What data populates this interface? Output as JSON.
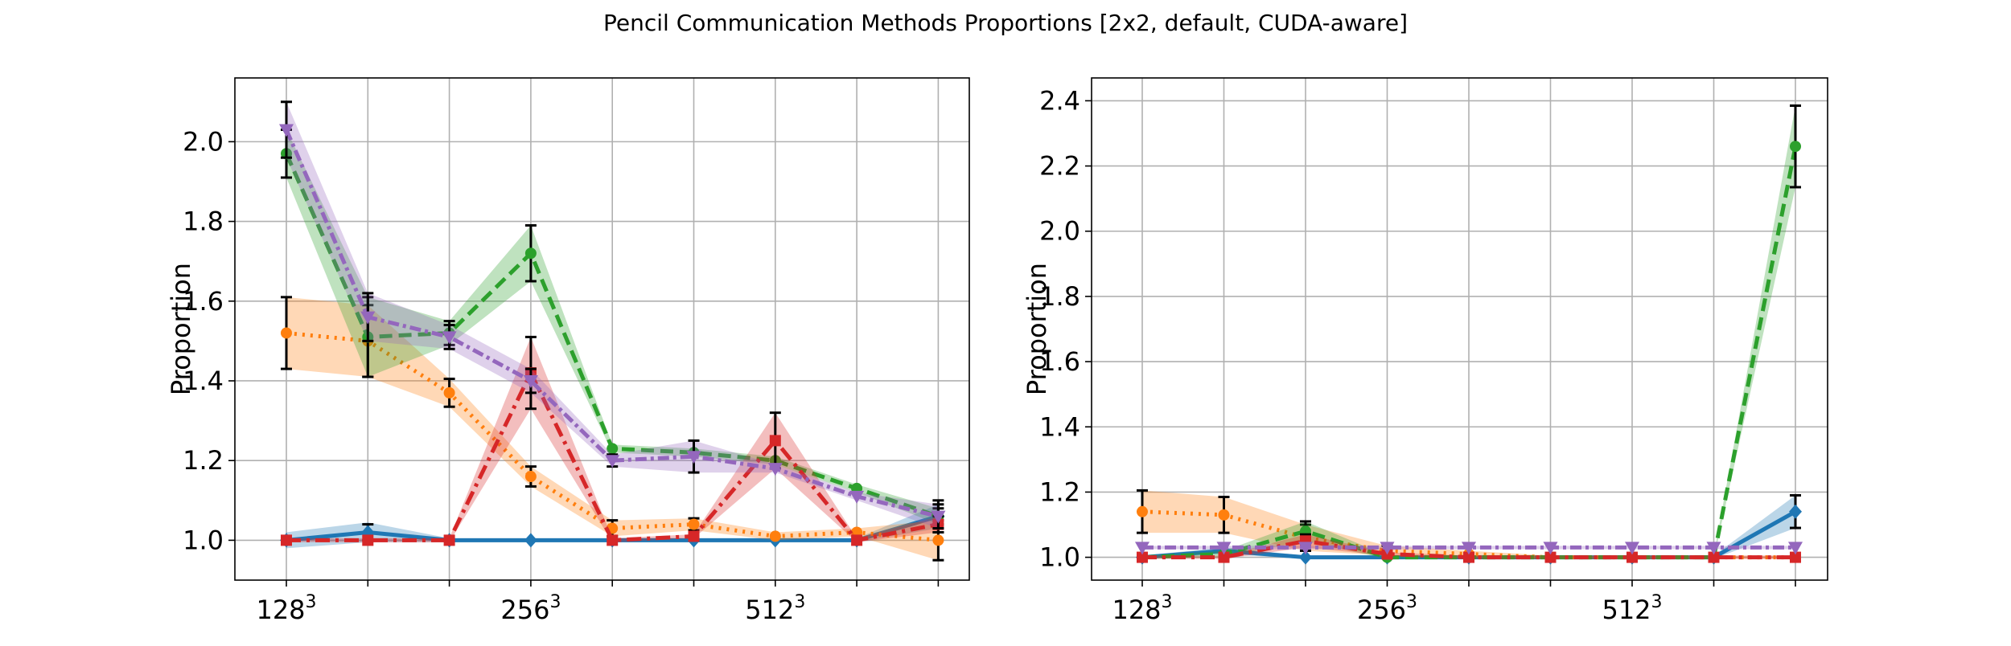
{
  "chart_data": [
    {
      "type": "line",
      "suptitle": "Pencil Communication Methods Proportions [2x2, default, CUDA-aware]",
      "title": "",
      "xlabel": "",
      "ylabel": "Proportion",
      "ylim": [
        0.9,
        2.16
      ],
      "yticks": [
        1.0,
        1.2,
        1.4,
        1.6,
        1.8,
        2.0
      ],
      "ytick_labels": [
        "1.0",
        "1.2",
        "1.4",
        "1.6",
        "1.8",
        "2.0"
      ],
      "x_labels": [
        "128",
        "",
        "",
        "256",
        "",
        "",
        "512",
        "",
        ""
      ],
      "tick_exponent": "3",
      "grid": true,
      "series": [
        {
          "color": "#1f77b4",
          "dash": "",
          "marker": "diamond",
          "values": [
            1.0,
            1.02,
            1.0,
            1.0,
            1.0,
            1.0,
            1.0,
            1.0,
            1.06
          ],
          "band": [
            0.02,
            0.025,
            0.005,
            0.005,
            0.005,
            0.005,
            0.005,
            0.005,
            0.03
          ],
          "err": [
            0.005,
            0.02,
            0.005,
            0.005,
            0.005,
            0.005,
            0.005,
            0.005,
            0.04
          ]
        },
        {
          "color": "#ff7f0e",
          "dash": "3,7",
          "marker": "circle",
          "values": [
            1.52,
            1.5,
            1.37,
            1.16,
            1.03,
            1.04,
            1.01,
            1.02,
            1.0
          ],
          "band": [
            0.09,
            0.09,
            0.035,
            0.025,
            0.02,
            0.015,
            0.01,
            0.01,
            0.05
          ],
          "err": [
            0.09,
            0.09,
            0.035,
            0.025,
            0.02,
            0.015,
            0.01,
            0.01,
            0.05
          ]
        },
        {
          "color": "#2ca02c",
          "dash": "16,8",
          "marker": "circle",
          "values": [
            1.97,
            1.51,
            1.52,
            1.72,
            1.23,
            1.22,
            1.2,
            1.13,
            1.06
          ],
          "band": [
            0.06,
            0.1,
            0.03,
            0.07,
            0.01,
            0.01,
            0.01,
            0.01,
            0.02
          ],
          "err": [
            0.06,
            0.1,
            0.03,
            0.07,
            0.01,
            0.01,
            0.01,
            0.01,
            0.02
          ]
        },
        {
          "color": "#d62728",
          "dash": "18,7,4,7",
          "marker": "square",
          "values": [
            1.0,
            1.0,
            1.0,
            1.42,
            1.0,
            1.01,
            1.25,
            1.0,
            1.04
          ],
          "band": [
            0.005,
            0.005,
            0.005,
            0.09,
            0.005,
            0.005,
            0.07,
            0.005,
            0.02
          ],
          "err": [
            0.005,
            0.005,
            0.005,
            0.09,
            0.005,
            0.005,
            0.07,
            0.005,
            0.02
          ]
        },
        {
          "color": "#9467bd",
          "dash": "14,5,4,5",
          "marker": "triangle-down",
          "values": [
            2.03,
            1.56,
            1.51,
            1.4,
            1.2,
            1.21,
            1.18,
            1.11,
            1.06
          ],
          "band": [
            0.07,
            0.06,
            0.03,
            0.03,
            0.015,
            0.04,
            0.01,
            0.01,
            0.03
          ],
          "err": [
            0.07,
            0.06,
            0.03,
            0.03,
            0.015,
            0.04,
            0.01,
            0.01,
            0.03
          ]
        }
      ]
    },
    {
      "type": "line",
      "title": "",
      "xlabel": "",
      "ylabel": "Proportion",
      "ylim": [
        0.93,
        2.47
      ],
      "yticks": [
        1.0,
        1.2,
        1.4,
        1.6,
        1.8,
        2.0,
        2.2,
        2.4
      ],
      "ytick_labels": [
        "1.0",
        "1.2",
        "1.4",
        "1.6",
        "1.8",
        "2.0",
        "2.2",
        "2.4"
      ],
      "x_labels": [
        "128",
        "",
        "",
        "256",
        "",
        "",
        "512",
        "",
        ""
      ],
      "tick_exponent": "3",
      "grid": true,
      "series": [
        {
          "color": "#1f77b4",
          "dash": "",
          "marker": "diamond",
          "values": [
            1.0,
            1.02,
            1.0,
            1.0,
            1.0,
            1.0,
            1.0,
            1.0,
            1.14
          ],
          "band": [
            0.005,
            0.01,
            0.005,
            0.005,
            0.005,
            0.005,
            0.005,
            0.005,
            0.05
          ],
          "err": [
            0.005,
            0.01,
            0.005,
            0.005,
            0.005,
            0.005,
            0.005,
            0.005,
            0.05
          ]
        },
        {
          "color": "#ff7f0e",
          "dash": "3,7",
          "marker": "circle",
          "values": [
            1.14,
            1.13,
            1.06,
            1.02,
            1.01,
            1.0,
            1.0,
            1.0,
            1.0
          ],
          "band": [
            0.065,
            0.055,
            0.04,
            0.015,
            0.01,
            0.005,
            0.005,
            0.005,
            0.005
          ],
          "err": [
            0.065,
            0.055,
            0.04,
            0.015,
            0.01,
            0.005,
            0.005,
            0.005,
            0.005
          ]
        },
        {
          "color": "#2ca02c",
          "dash": "16,8",
          "marker": "circle",
          "values": [
            1.0,
            1.01,
            1.08,
            1.0,
            1.0,
            1.0,
            1.0,
            1.0,
            2.26
          ],
          "band": [
            0.005,
            0.01,
            0.03,
            0.005,
            0.005,
            0.005,
            0.005,
            0.005,
            0.125
          ],
          "err": [
            0.005,
            0.01,
            0.03,
            0.005,
            0.005,
            0.005,
            0.005,
            0.005,
            0.125
          ]
        },
        {
          "color": "#d62728",
          "dash": "18,7,4,7",
          "marker": "square",
          "values": [
            1.0,
            1.0,
            1.05,
            1.01,
            1.0,
            1.0,
            1.0,
            1.0,
            1.0
          ],
          "band": [
            0.005,
            0.005,
            0.02,
            0.005,
            0.005,
            0.005,
            0.005,
            0.005,
            0.005
          ],
          "err": [
            0.005,
            0.005,
            0.02,
            0.005,
            0.005,
            0.005,
            0.005,
            0.005,
            0.005
          ]
        },
        {
          "color": "#9467bd",
          "dash": "14,5,4,5",
          "marker": "triangle-down",
          "values": [
            1.03,
            1.03,
            1.03,
            1.03,
            1.03,
            1.03,
            1.03,
            1.03,
            1.03
          ],
          "band": [
            0.005,
            0.005,
            0.005,
            0.005,
            0.005,
            0.005,
            0.005,
            0.005,
            0.005
          ],
          "err": [
            0.005,
            0.005,
            0.005,
            0.005,
            0.005,
            0.005,
            0.005,
            0.005,
            0.005
          ]
        }
      ]
    }
  ]
}
